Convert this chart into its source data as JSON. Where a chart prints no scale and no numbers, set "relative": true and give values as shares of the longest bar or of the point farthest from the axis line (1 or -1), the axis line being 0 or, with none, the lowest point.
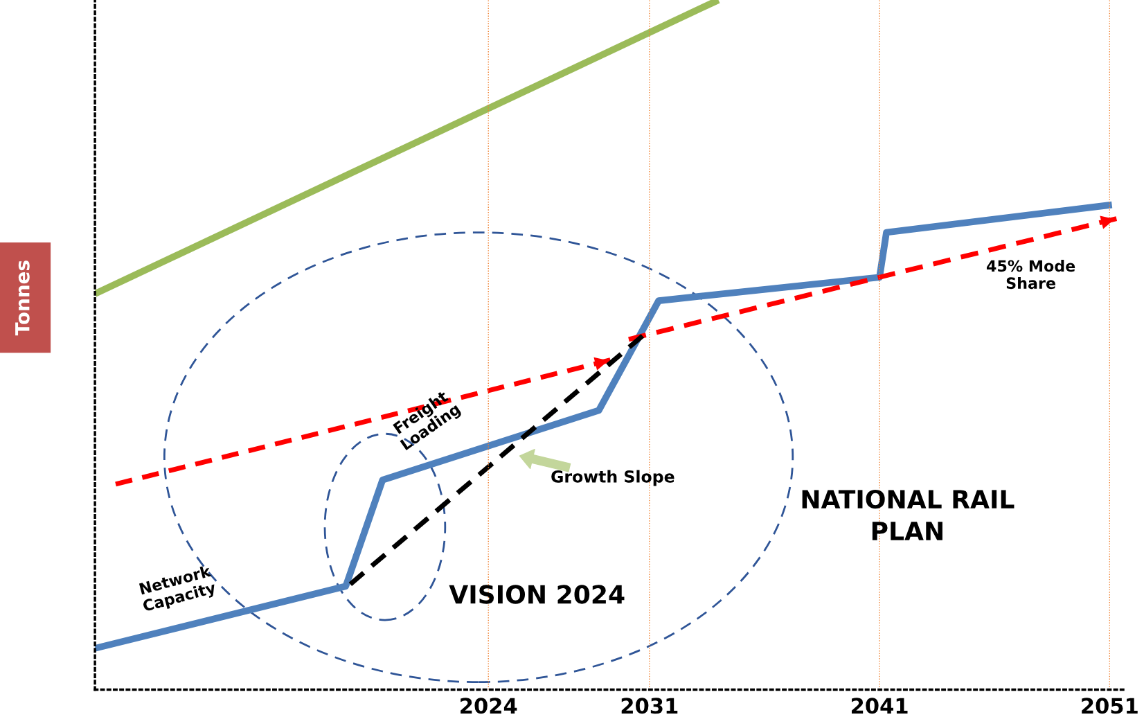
{
  "chart_data": {
    "type": "line",
    "relative": true,
    "ylabel": "Tonnes",
    "xlim": [
      2006.9,
      2051.6
    ],
    "xticks": [
      2024,
      2031,
      2041,
      2051
    ],
    "grid": false,
    "tick_labels": "x",
    "series": [
      {
        "color": "#9bbb59",
        "x": [
          2006.9,
          2034.0
        ],
        "values": [
          0.574,
          1.0
        ]
      },
      {
        "color": "#4f81bd",
        "x": [
          2006.9,
          2017.8,
          2019.4,
          2028.8,
          2031.4,
          2041.0,
          2041.3,
          2051.1
        ],
        "values": [
          0.06,
          0.15,
          0.304,
          0.405,
          0.564,
          0.598,
          0.663,
          0.703
        ]
      },
      {
        "color": "#ff0000",
        "line_style": "dashed",
        "x": [
          2007.8,
          2029.3
        ],
        "values": [
          0.298,
          0.478
        ]
      },
      {
        "color": "#ff0000",
        "line_style": "dashed",
        "x": [
          2030.1,
          2051.3
        ],
        "values": [
          0.508,
          0.683
        ]
      },
      {
        "color": "#000000",
        "line_style": "dashed",
        "x": [
          2018.0,
          2030.7
        ],
        "values": [
          0.153,
          0.513
        ]
      }
    ],
    "ref_lines": [
      {
        "axis": "x",
        "value": 2024,
        "color": "#f08030",
        "line_style": "dotted"
      },
      {
        "axis": "x",
        "value": 2031,
        "color": "#f08030",
        "line_style": "dotted"
      },
      {
        "axis": "x",
        "value": 2041,
        "color": "#f08030",
        "line_style": "dotted"
      },
      {
        "axis": "x",
        "value": 2051,
        "color": "#f08030",
        "line_style": "dotted"
      }
    ],
    "annotations": [
      "Network\nCapacity",
      "Freight\nLoading",
      "Growth Slope",
      "45% Mode\nShare",
      "VISION 2024",
      "NATIONAL RAIL\nPLAN"
    ]
  }
}
